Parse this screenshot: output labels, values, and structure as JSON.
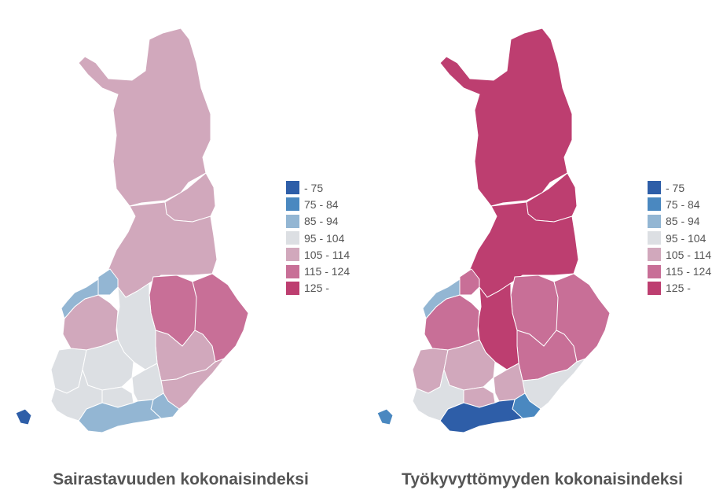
{
  "legend_classes": [
    {
      "label": "- 75",
      "color": "#2e5ea8"
    },
    {
      "label": "75 - 84",
      "color": "#4a88c0"
    },
    {
      "label": "85 - 94",
      "color": "#93b6d3"
    },
    {
      "label": "95 - 104",
      "color": "#dcdfe3"
    },
    {
      "label": "105 - 114",
      "color": "#d1a8bc"
    },
    {
      "label": "115 - 124",
      "color": "#c86f97"
    },
    {
      "label": "125 -",
      "color": "#bd3e70"
    }
  ],
  "maps": [
    {
      "caption": "Sairastavuuden kokonaisindeksi",
      "region_classes": {
        "lapland": 4,
        "kainuu": 4,
        "north-ostrobothnia": 4,
        "north-savo": 5,
        "north-karelia": 5,
        "south-savo": 4,
        "south-karelia": 4,
        "central-finland": 3,
        "south-ostrobothnia": 4,
        "ostrobothnia": 2,
        "central-ostrobothnia": 2,
        "satakunta": 3,
        "pirkanmaa": 3,
        "kanta-hame": 3,
        "paijat-hame": 3,
        "kymenlaakso": 2,
        "uusimaa": 2,
        "southwest-finland": 3,
        "aland": 0
      }
    },
    {
      "caption": "Työkyvyttömyyden kokonaisindeksi",
      "region_classes": {
        "lapland": 6,
        "kainuu": 6,
        "north-ostrobothnia": 6,
        "north-savo": 5,
        "north-karelia": 5,
        "south-savo": 5,
        "south-karelia": 3,
        "central-finland": 6,
        "south-ostrobothnia": 5,
        "ostrobothnia": 2,
        "central-ostrobothnia": 5,
        "satakunta": 4,
        "pirkanmaa": 4,
        "kanta-hame": 4,
        "paijat-hame": 4,
        "kymenlaakso": 1,
        "uusimaa": 0,
        "southwest-finland": 3,
        "aland": 1
      }
    }
  ]
}
